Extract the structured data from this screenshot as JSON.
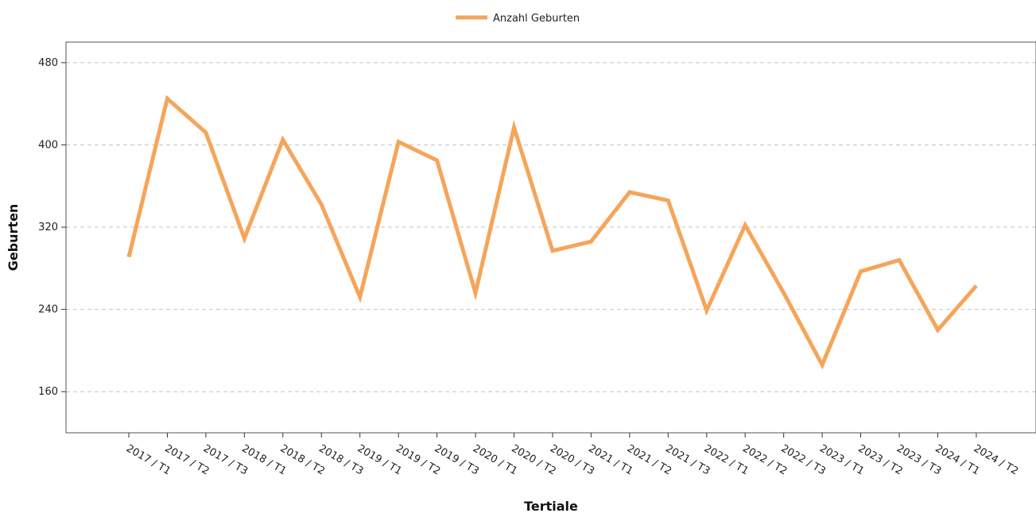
{
  "chart_data": {
    "type": "line",
    "title": "",
    "xlabel": "Tertiale",
    "ylabel": "Geburten",
    "categories": [
      "2017 / T1",
      "2017 / T2",
      "2017 / T3",
      "2018 / T1",
      "2018 / T2",
      "2018 / T3",
      "2019 / T1",
      "2019 / T2",
      "2019 / T3",
      "2020 / T1",
      "2020 / T2",
      "2020 / T3",
      "2021 / T1",
      "2021 / T2",
      "2021 / T3",
      "2022 / T1",
      "2022 / T2",
      "2022 / T3",
      "2023 / T1",
      "2023 / T2",
      "2023 / T3",
      "2024 / T1",
      "2024 / T2"
    ],
    "series": [
      {
        "name": "Anzahl Geburten",
        "color": "#F5A55A",
        "values": [
          291,
          445,
          412,
          309,
          405,
          342,
          252,
          403,
          385,
          256,
          417,
          297,
          306,
          354,
          346,
          239,
          322,
          256,
          186,
          277,
          288,
          220,
          263
        ]
      }
    ],
    "ylim": [
      120,
      500
    ],
    "yticks": [
      160,
      240,
      320,
      400,
      480
    ],
    "grid": "horizontal dashed",
    "legend_position": "top-center"
  }
}
